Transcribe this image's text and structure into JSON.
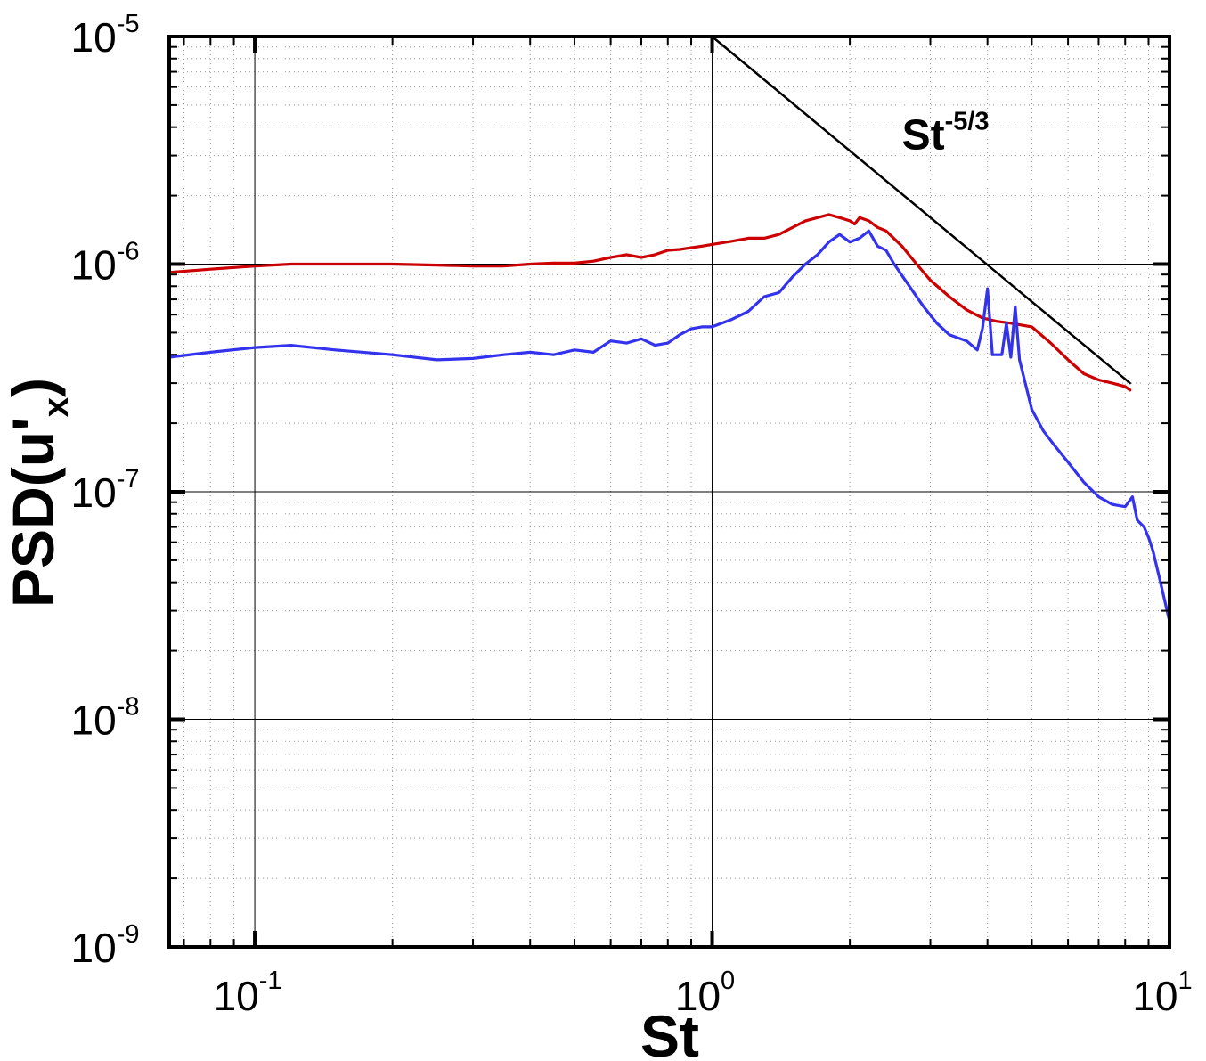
{
  "chart_data": {
    "type": "line",
    "xlabel": "St",
    "ylabel": {
      "main": "PSD(u'",
      "sub": "x",
      "close": ")"
    },
    "xscale": "log",
    "yscale": "log",
    "xlim": [
      0.065,
      10
    ],
    "ylim": [
      1e-09,
      1e-05
    ],
    "grid": true,
    "x_ticks": [
      {
        "value": 0.1,
        "base": "10",
        "exp": "-1"
      },
      {
        "value": 1,
        "base": "10",
        "exp": "0"
      },
      {
        "value": 10,
        "base": "10",
        "exp": "1"
      }
    ],
    "y_ticks": [
      {
        "value": 1e-05,
        "base": "10",
        "exp": "-5"
      },
      {
        "value": 1e-06,
        "base": "10",
        "exp": "-6"
      },
      {
        "value": 1e-07,
        "base": "10",
        "exp": "-7"
      },
      {
        "value": 1e-08,
        "base": "10",
        "exp": "-8"
      },
      {
        "value": 1e-09,
        "base": "10",
        "exp": "-9"
      }
    ],
    "annotation": {
      "base": "St",
      "exp": "-5/3",
      "x": 2.6,
      "y": 3.2e-06
    },
    "series": [
      {
        "color": "#cc0000",
        "x": [
          0.065,
          0.08,
          0.1,
          0.12,
          0.15,
          0.2,
          0.25,
          0.3,
          0.35,
          0.4,
          0.45,
          0.5,
          0.55,
          0.6,
          0.65,
          0.7,
          0.75,
          0.8,
          0.85,
          0.9,
          0.95,
          1.0,
          1.1,
          1.2,
          1.3,
          1.4,
          1.5,
          1.6,
          1.7,
          1.8,
          1.9,
          2.0,
          2.05,
          2.1,
          2.2,
          2.3,
          2.4,
          2.6,
          2.8,
          3.0,
          3.3,
          3.6,
          3.9,
          4.2,
          4.5,
          5.0,
          5.5,
          6.0,
          6.5,
          7.0,
          7.5,
          8.0,
          8.2
        ],
        "y": [
          9.2e-07,
          9.5e-07,
          9.8e-07,
          1e-06,
          1e-06,
          1e-06,
          9.9e-07,
          9.8e-07,
          9.8e-07,
          1e-06,
          1.01e-06,
          1.01e-06,
          1.03e-06,
          1.07e-06,
          1.1e-06,
          1.07e-06,
          1.1e-06,
          1.15e-06,
          1.16e-06,
          1.18e-06,
          1.2e-06,
          1.22e-06,
          1.26e-06,
          1.3e-06,
          1.3e-06,
          1.35e-06,
          1.45e-06,
          1.55e-06,
          1.6e-06,
          1.65e-06,
          1.6e-06,
          1.55e-06,
          1.5e-06,
          1.6e-06,
          1.55e-06,
          1.45e-06,
          1.4e-06,
          1.2e-06,
          1e-06,
          8.5e-07,
          7.2e-07,
          6.3e-07,
          5.8e-07,
          5.6e-07,
          5.5e-07,
          5.3e-07,
          4.5e-07,
          3.8e-07,
          3.3e-07,
          3.1e-07,
          3e-07,
          2.9e-07,
          2.8e-07
        ]
      },
      {
        "color": "#3333ee",
        "x": [
          0.065,
          0.08,
          0.1,
          0.12,
          0.15,
          0.2,
          0.25,
          0.3,
          0.35,
          0.4,
          0.45,
          0.5,
          0.55,
          0.6,
          0.65,
          0.7,
          0.75,
          0.8,
          0.85,
          0.9,
          0.95,
          1.0,
          1.05,
          1.1,
          1.2,
          1.3,
          1.4,
          1.5,
          1.6,
          1.7,
          1.8,
          1.9,
          2.0,
          2.1,
          2.2,
          2.3,
          2.4,
          2.5,
          2.7,
          2.9,
          3.1,
          3.3,
          3.6,
          3.8,
          3.9,
          4.0,
          4.1,
          4.3,
          4.4,
          4.5,
          4.6,
          4.7,
          4.8,
          5.0,
          5.3,
          5.6,
          6.0,
          6.5,
          7.0,
          7.5,
          8.0,
          8.3,
          8.5,
          8.8,
          9.0,
          9.2,
          9.5,
          10.0
        ],
        "y": [
          3.9e-07,
          4.1e-07,
          4.3e-07,
          4.4e-07,
          4.2e-07,
          4e-07,
          3.8e-07,
          3.85e-07,
          4e-07,
          4.1e-07,
          4e-07,
          4.2e-07,
          4.1e-07,
          4.6e-07,
          4.5e-07,
          4.7e-07,
          4.4e-07,
          4.5e-07,
          4.9e-07,
          5.2e-07,
          5.3e-07,
          5.3e-07,
          5.5e-07,
          5.7e-07,
          6.2e-07,
          7.2e-07,
          7.5e-07,
          8.8e-07,
          1e-06,
          1.1e-06,
          1.25e-06,
          1.35e-06,
          1.25e-06,
          1.3e-06,
          1.4e-06,
          1.2e-06,
          1.15e-06,
          1e-06,
          8e-07,
          6.5e-07,
          5.5e-07,
          4.9e-07,
          4.6e-07,
          4.2e-07,
          5.2e-07,
          7.8e-07,
          4e-07,
          4e-07,
          5.5e-07,
          3.9e-07,
          6.5e-07,
          3.8e-07,
          3.2e-07,
          2.3e-07,
          1.85e-07,
          1.6e-07,
          1.35e-07,
          1.1e-07,
          9.5e-08,
          8.8e-08,
          8.6e-08,
          9.5e-08,
          7.5e-08,
          7e-08,
          6.3e-08,
          5.5e-08,
          4.2e-08,
          2.7e-08
        ]
      },
      {
        "color": "#000000",
        "x": [
          1.0,
          8.2
        ],
        "y": [
          1e-05,
          3e-07
        ]
      }
    ]
  }
}
